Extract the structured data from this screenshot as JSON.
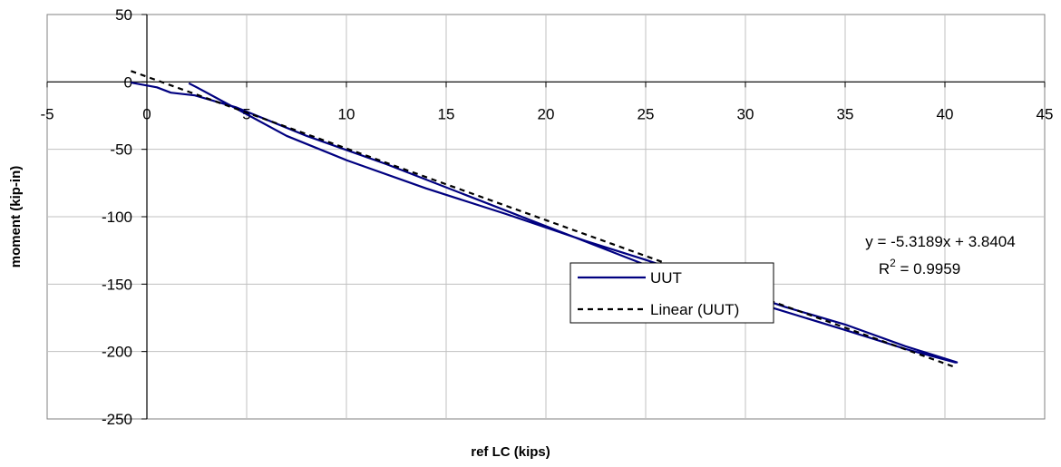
{
  "chart_data": {
    "type": "scatter",
    "title": "",
    "xlabel": "ref LC (kips)",
    "ylabel": "moment (kip-in)",
    "xlim": [
      -5,
      45
    ],
    "ylim": [
      -250,
      50
    ],
    "xticks": [
      -5,
      0,
      5,
      10,
      15,
      20,
      25,
      30,
      35,
      40,
      45
    ],
    "yticks": [
      50,
      0,
      -50,
      -100,
      -150,
      -200,
      -250
    ],
    "grid": true,
    "legend_position": "center-right",
    "series": [
      {
        "name": "UUT",
        "style": "solid",
        "color": "#000080",
        "points": [
          [
            -0.8,
            -0.5
          ],
          [
            0.5,
            -4
          ],
          [
            1.2,
            -8
          ],
          [
            2.4,
            -10
          ],
          [
            4.5,
            -19
          ],
          [
            8,
            -40
          ],
          [
            12,
            -61
          ],
          [
            16,
            -84
          ],
          [
            20,
            -107
          ],
          [
            24,
            -130
          ],
          [
            28,
            -153
          ],
          [
            31,
            -166
          ],
          [
            35,
            -184
          ],
          [
            38,
            -198
          ],
          [
            40.5,
            -208
          ],
          [
            40.6,
            -208
          ],
          [
            38,
            -196
          ],
          [
            35,
            -180
          ],
          [
            32,
            -167
          ],
          [
            29,
            -152
          ],
          [
            25,
            -132
          ],
          [
            22,
            -118
          ],
          [
            18,
            -98
          ],
          [
            14,
            -79
          ],
          [
            10,
            -58
          ],
          [
            7,
            -40
          ],
          [
            4,
            -16
          ],
          [
            2.5,
            -4
          ],
          [
            2.1,
            -1
          ]
        ]
      },
      {
        "name": "Linear (UUT)",
        "style": "dashed",
        "color": "#000000",
        "slope": -5.3189,
        "intercept": 3.8404,
        "x_range": [
          -0.8,
          40.6
        ]
      }
    ],
    "annotations": {
      "equation": "y = -5.3189x + 3.8404",
      "r2_prefix": "R",
      "r2_sup": "2",
      "r2_suffix": " = 0.9959"
    }
  }
}
